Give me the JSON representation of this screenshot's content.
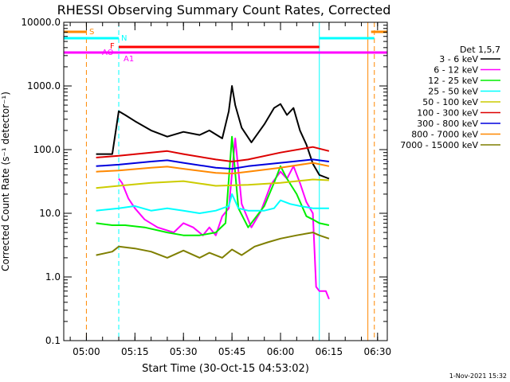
{
  "chart_data": {
    "type": "line",
    "title": "RHESSI Observing Summary Count Rates, Corrected",
    "xlabel": "Start Time (30-Oct-15 04:53:02)",
    "ylabel": "Corrected Count Rate (s⁻¹ detector⁻¹)",
    "y_scale": "log",
    "ylim": [
      0.1,
      10000
    ],
    "xlim": [
      "04:53",
      "06:33"
    ],
    "x_ticks": [
      "05:00",
      "05:15",
      "05:30",
      "05:45",
      "06:00",
      "06:15",
      "06:30"
    ],
    "y_ticks": [
      "0.1",
      "1.0",
      "10.0",
      "100.0",
      "1000.0",
      "10000.0"
    ],
    "legend_title": "Det 1,5,7",
    "legend_position": "right",
    "series": [
      {
        "name": "3 - 6 keV",
        "color": "#000000",
        "x": [
          "05:03",
          "05:08",
          "05:10",
          "05:12",
          "05:15",
          "05:20",
          "05:25",
          "05:30",
          "05:35",
          "05:38",
          "05:42",
          "05:44",
          "05:45",
          "05:46",
          "05:48",
          "05:51",
          "05:55",
          "05:58",
          "06:00",
          "06:02",
          "06:04",
          "06:06",
          "06:08",
          "06:10",
          "06:12",
          "06:15"
        ],
        "y": [
          85,
          85,
          400,
          350,
          280,
          200,
          160,
          190,
          170,
          200,
          150,
          400,
          1000,
          500,
          220,
          130,
          250,
          450,
          520,
          350,
          450,
          200,
          120,
          60,
          40,
          35
        ]
      },
      {
        "name": "6 - 12 keV",
        "color": "#ff00ff",
        "x": [
          "05:10",
          "05:11",
          "05:13",
          "05:15",
          "05:18",
          "05:22",
          "05:27",
          "05:30",
          "05:33",
          "05:36",
          "05:38",
          "05:40",
          "05:42",
          "05:44",
          "05:46",
          "05:48",
          "05:51",
          "05:54",
          "05:57",
          "06:00",
          "06:02",
          "06:04",
          "06:06",
          "06:08",
          "06:10",
          "06:11",
          "06:12",
          "06:14",
          "06:15"
        ],
        "y": [
          35,
          30,
          17,
          12,
          8,
          6,
          5,
          7,
          6,
          4.5,
          6,
          4.5,
          9,
          12,
          150,
          14,
          6,
          11,
          28,
          45,
          35,
          55,
          30,
          15,
          10,
          0.7,
          0.6,
          0.6,
          0.45
        ]
      },
      {
        "name": "12 - 25 keV",
        "color": "#00ee00",
        "x": [
          "05:03",
          "05:08",
          "05:12",
          "05:18",
          "05:25",
          "05:30",
          "05:35",
          "05:40",
          "05:43",
          "05:45",
          "05:47",
          "05:50",
          "05:55",
          "05:58",
          "06:00",
          "06:02",
          "06:05",
          "06:08",
          "06:10",
          "06:12",
          "06:15"
        ],
        "y": [
          7,
          6.5,
          6.5,
          6,
          5,
          4.5,
          4.5,
          5,
          7,
          160,
          12,
          6,
          13,
          30,
          55,
          35,
          20,
          9,
          8,
          7,
          6.5
        ]
      },
      {
        "name": "25 - 50 keV",
        "color": "#00ffff",
        "x": [
          "05:03",
          "05:10",
          "05:15",
          "05:20",
          "05:25",
          "05:30",
          "05:35",
          "05:40",
          "05:44",
          "05:45",
          "05:47",
          "05:50",
          "05:55",
          "05:58",
          "06:00",
          "06:03",
          "06:06",
          "06:10",
          "06:15"
        ],
        "y": [
          11,
          12,
          13,
          11,
          12,
          11,
          10,
          11,
          13,
          20,
          12,
          11,
          11,
          12,
          16,
          14,
          13,
          12,
          12
        ]
      },
      {
        "name": "50 - 100 keV",
        "color": "#cccc00",
        "x": [
          "05:03",
          "05:10",
          "05:20",
          "05:30",
          "05:40",
          "05:50",
          "06:00",
          "06:10",
          "06:15"
        ],
        "y": [
          25,
          27,
          30,
          32,
          27,
          28,
          30,
          34,
          33
        ]
      },
      {
        "name": "100 - 300 keV",
        "color": "#dd0000",
        "x": [
          "05:03",
          "05:10",
          "05:20",
          "05:25",
          "05:30",
          "05:40",
          "05:45",
          "05:50",
          "06:00",
          "06:10",
          "06:15"
        ],
        "y": [
          75,
          80,
          90,
          95,
          85,
          70,
          65,
          70,
          90,
          110,
          95
        ]
      },
      {
        "name": "300 - 800 keV",
        "color": "#0000dd",
        "x": [
          "05:03",
          "05:10",
          "05:20",
          "05:25",
          "05:30",
          "05:40",
          "05:45",
          "05:50",
          "06:00",
          "06:10",
          "06:15"
        ],
        "y": [
          55,
          58,
          65,
          68,
          62,
          52,
          50,
          55,
          62,
          70,
          65
        ]
      },
      {
        "name": "800 - 7000 keV",
        "color": "#ff8800",
        "x": [
          "05:03",
          "05:10",
          "05:20",
          "05:25",
          "05:30",
          "05:40",
          "05:45",
          "05:50",
          "06:00",
          "06:10",
          "06:15"
        ],
        "y": [
          45,
          47,
          52,
          54,
          50,
          43,
          42,
          45,
          52,
          62,
          55
        ]
      },
      {
        "name": "7000 - 15000 keV",
        "color": "#7f7f00",
        "x": [
          "05:03",
          "05:08",
          "05:10",
          "05:15",
          "05:20",
          "05:25",
          "05:30",
          "05:35",
          "05:38",
          "05:42",
          "05:45",
          "05:48",
          "05:52",
          "05:56",
          "06:00",
          "06:05",
          "06:10",
          "06:12",
          "06:15"
        ],
        "y": [
          2.2,
          2.5,
          3,
          2.8,
          2.5,
          2,
          2.6,
          2,
          2.4,
          2,
          2.7,
          2.2,
          3,
          3.5,
          4,
          4.5,
          5,
          4.5,
          4
        ]
      }
    ],
    "flag_bars": [
      {
        "label": "S",
        "color": "#ff8800",
        "segments": [
          [
            "04:53",
            "05:00"
          ],
          [
            "06:28",
            "06:33"
          ]
        ]
      },
      {
        "label": "N",
        "color": "#00ffff",
        "segments": [
          [
            "04:53",
            "05:10"
          ],
          [
            "06:12",
            "06:29"
          ]
        ]
      },
      {
        "label": "F",
        "color": "#ff0000",
        "segments": [
          [
            "05:10",
            "06:12"
          ]
        ]
      },
      {
        "label": "AO",
        "color": "#ff00ff",
        "segments": [
          [
            "04:53",
            "05:10"
          ]
        ]
      },
      {
        "label": "A1",
        "color": "#ff00ff",
        "segments": [
          [
            "05:10",
            "06:33"
          ]
        ]
      }
    ],
    "vertical_markers": [
      {
        "x": "04:53",
        "color": "#00ffff",
        "style": "solid"
      },
      {
        "x": "05:00",
        "color": "#ff8800",
        "style": "dashed"
      },
      {
        "x": "05:10",
        "color": "#00ffff",
        "style": "dashed"
      },
      {
        "x": "06:12",
        "color": "#00ffff",
        "style": "solid"
      },
      {
        "x": "06:27",
        "color": "#ff8800",
        "style": "solid"
      },
      {
        "x": "06:29",
        "color": "#ff8800",
        "style": "dashed"
      }
    ]
  },
  "footer_date": "1-Nov-2021 15:32"
}
